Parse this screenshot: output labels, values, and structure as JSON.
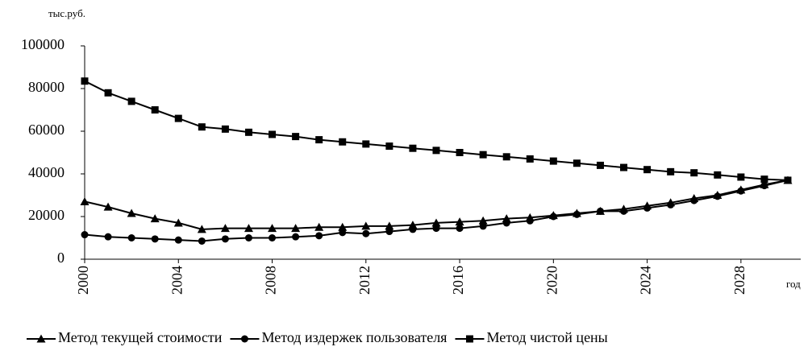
{
  "chart_data": {
    "type": "line",
    "y_label": "тыс.руб.",
    "x_label": "год",
    "x": [
      2000,
      2001,
      2002,
      2003,
      2004,
      2005,
      2006,
      2007,
      2008,
      2009,
      2010,
      2011,
      2012,
      2013,
      2014,
      2015,
      2016,
      2017,
      2018,
      2019,
      2020,
      2021,
      2022,
      2023,
      2024,
      2025,
      2026,
      2027,
      2028,
      2029,
      2030
    ],
    "series": [
      {
        "name": "Метод текущей стоимости",
        "color": "#000000",
        "marker": "triangle",
        "values": [
          27000,
          24500,
          21500,
          19000,
          17000,
          14000,
          14500,
          14500,
          14500,
          14500,
          15000,
          15000,
          15500,
          15500,
          16000,
          17000,
          17500,
          18000,
          19000,
          19500,
          20500,
          21500,
          22500,
          23500,
          25000,
          26500,
          28500,
          30000,
          32500,
          35000,
          37000
        ]
      },
      {
        "name": "Метод издержек пользователя",
        "color": "#000000",
        "marker": "circle",
        "values": [
          11500,
          10500,
          10000,
          9500,
          9000,
          8500,
          9500,
          10000,
          10000,
          10500,
          11000,
          12500,
          12000,
          13000,
          14000,
          14500,
          14500,
          15500,
          17000,
          18000,
          20000,
          21000,
          22500,
          22500,
          24000,
          25500,
          27500,
          29500,
          32000,
          34500,
          37000
        ]
      },
      {
        "name": "Метод чистой цены",
        "color": "#000000",
        "marker": "square",
        "values": [
          83500,
          78000,
          74000,
          70000,
          66000,
          62000,
          61000,
          59500,
          58500,
          57500,
          56000,
          55000,
          54000,
          53000,
          52000,
          51000,
          50000,
          49000,
          48000,
          47000,
          46000,
          45000,
          44000,
          43000,
          42000,
          41000,
          40500,
          39500,
          38500,
          37500,
          37000
        ]
      }
    ],
    "xlim": [
      2000,
      2030
    ],
    "xticks": [
      2000,
      2004,
      2008,
      2012,
      2016,
      2020,
      2024,
      2028
    ],
    "ylim": [
      0,
      100000
    ],
    "yticks": [
      0,
      20000,
      40000,
      60000,
      80000,
      100000
    ],
    "legend": "bottom"
  }
}
